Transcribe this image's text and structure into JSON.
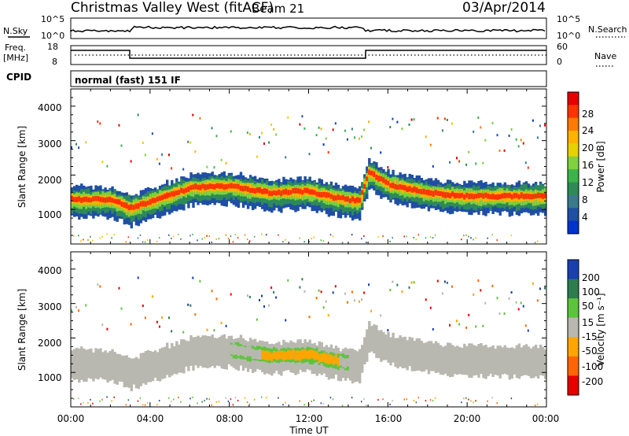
{
  "header": {
    "title": "Christmas Valley West (fitACF)",
    "beam": "Beam 21",
    "date": "03/Apr/2014"
  },
  "top_panels": {
    "nsky_label": "N.Sky",
    "nsearch_label": "N.Search",
    "noise_ticks": [
      "10^5",
      "10^0"
    ],
    "freq_label_1": "Freq.",
    "freq_label_2": "[MHz]",
    "freq_ticks": [
      "18",
      "8"
    ],
    "nave_label": "Nave",
    "nave_ticks": [
      "60",
      "0"
    ],
    "cpid_label": "CPID",
    "cpid_value": "normal (fast) 151 IF"
  },
  "axes": {
    "ylabel": "Slant Range [km]",
    "yticks": [
      "4000",
      "3000",
      "2000",
      "1000"
    ],
    "xticks": [
      "00:00",
      "04:00",
      "08:00",
      "12:00",
      "16:00",
      "20:00",
      "00:00"
    ],
    "xlabel": "Time UT"
  },
  "power_scale": {
    "label": "Power [dB]",
    "ticks": [
      "28",
      "24",
      "20",
      "16",
      "12",
      "8",
      "4"
    ],
    "colors": [
      "#e60000",
      "#ff3300",
      "#ff7a00",
      "#ffb300",
      "#e6d200",
      "#7fd23c",
      "#3cb44b",
      "#2e8b57",
      "#3a7a8a",
      "#1f4fa3",
      "#0033cc"
    ]
  },
  "velocity_scale": {
    "label": "Velocity [m s⁻¹]",
    "ticks": [
      "200",
      "100",
      "50",
      "15",
      "-15",
      "-50",
      "-100",
      "-200"
    ],
    "colors": [
      "#1a3fb0",
      "#2e7d4f",
      "#5cc43c",
      "#b8b8b0",
      "#ffa500",
      "#ff6600",
      "#e60000"
    ]
  },
  "chart_data": [
    {
      "type": "heatmap",
      "name": "Power",
      "x_range_hours": [
        0,
        24
      ],
      "y_range_km": [
        0,
        4500
      ],
      "band_center_km": [
        [
          0,
          1300
        ],
        [
          1,
          1300
        ],
        [
          2,
          1300
        ],
        [
          3,
          1050
        ],
        [
          4,
          1250
        ],
        [
          6,
          1650
        ],
        [
          8,
          1700
        ],
        [
          10,
          1500
        ],
        [
          12,
          1550
        ],
        [
          13,
          1400
        ],
        [
          14.5,
          1250
        ],
        [
          15,
          2100
        ],
        [
          16,
          1750
        ],
        [
          18,
          1500
        ],
        [
          20,
          1400
        ],
        [
          22,
          1400
        ],
        [
          24,
          1400
        ]
      ]
    },
    {
      "type": "heatmap",
      "name": "Velocity",
      "x_range_hours": [
        0,
        24
      ],
      "y_range_km": [
        0,
        4500
      ]
    }
  ]
}
